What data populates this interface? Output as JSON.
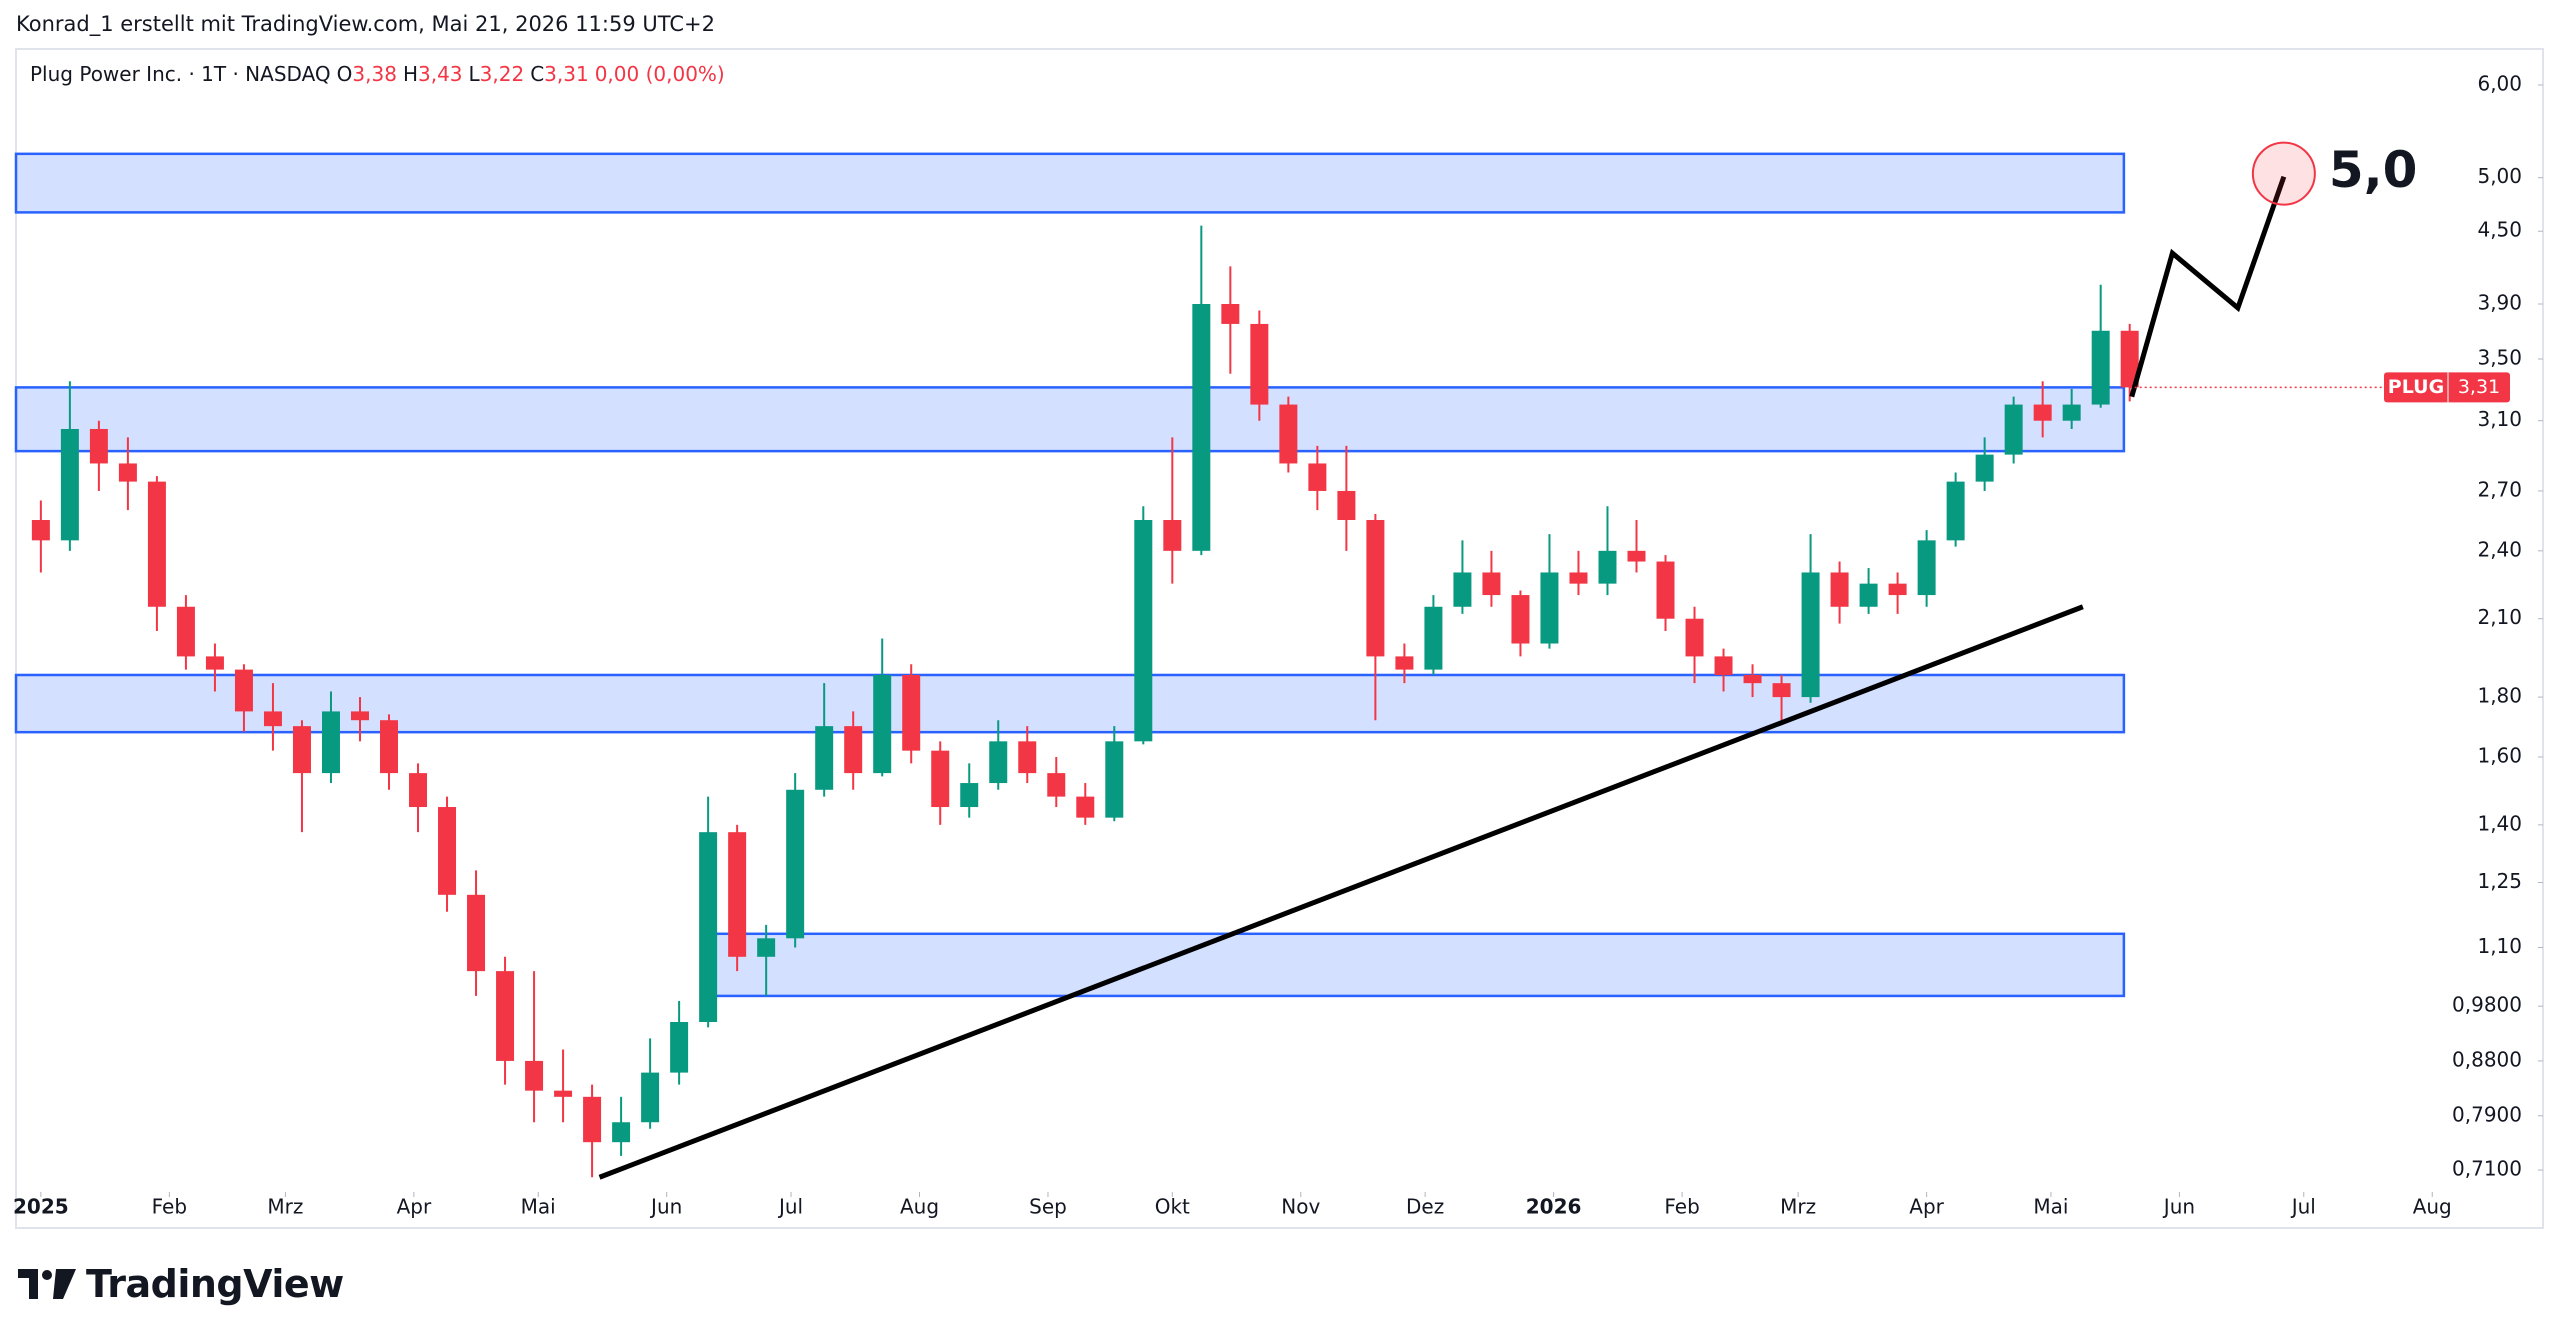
{
  "header": "Konrad_1 erstellt mit TradingView.com, Mai 21, 2026 11:59 UTC+2",
  "legend": {
    "name": "Plug Power Inc. · 1T · NASDAQ",
    "ohlc": [
      {
        "label": "O",
        "value": "3,38"
      },
      {
        "label": "H",
        "value": "3,43"
      },
      {
        "label": "L",
        "value": "3,22"
      },
      {
        "label": "C",
        "value": "3,31"
      }
    ],
    "change": "0,00 (0,00%)"
  },
  "footer": {
    "brand": "TradingView"
  },
  "chart_data": {
    "type": "candlestick",
    "log_scale": true,
    "up_color": "#089981",
    "down_color": "#f23645",
    "xlim": [
      -6,
      603
    ],
    "ylim": [
      0.68,
      6.44
    ],
    "xticks": [
      {
        "value": 0,
        "label": "2025"
      },
      {
        "value": 31,
        "label": "Feb"
      },
      {
        "value": 59,
        "label": "Mrz"
      },
      {
        "value": 90,
        "label": "Apr"
      },
      {
        "value": 120,
        "label": "Mai"
      },
      {
        "value": 151,
        "label": "Jun"
      },
      {
        "value": 181,
        "label": "Jul"
      },
      {
        "value": 212,
        "label": "Aug"
      },
      {
        "value": 243,
        "label": "Sep"
      },
      {
        "value": 273,
        "label": "Okt"
      },
      {
        "value": 304,
        "label": "Nov"
      },
      {
        "value": 334,
        "label": "Dez"
      },
      {
        "value": 365,
        "label": "2026"
      },
      {
        "value": 396,
        "label": "Feb"
      },
      {
        "value": 424,
        "label": "Mrz"
      },
      {
        "value": 455,
        "label": "Apr"
      },
      {
        "value": 485,
        "label": "Mai"
      },
      {
        "value": 516,
        "label": "Jun"
      },
      {
        "value": 546,
        "label": "Jul"
      },
      {
        "value": 577,
        "label": "Aug"
      }
    ],
    "yticks": [
      {
        "value": 6.0,
        "label": "6,00"
      },
      {
        "value": 5.0,
        "label": "5,00"
      },
      {
        "value": 4.5,
        "label": "4,50"
      },
      {
        "value": 3.9,
        "label": "3,90"
      },
      {
        "value": 3.5,
        "label": "3,50"
      },
      {
        "value": 3.1,
        "label": "3,10"
      },
      {
        "value": 2.7,
        "label": "2,70"
      },
      {
        "value": 2.4,
        "label": "2,40"
      },
      {
        "value": 2.1,
        "label": "2,10"
      },
      {
        "value": 1.8,
        "label": "1,80"
      },
      {
        "value": 1.6,
        "label": "1,60"
      },
      {
        "value": 1.4,
        "label": "1,40"
      },
      {
        "value": 1.25,
        "label": "1,25"
      },
      {
        "value": 1.1,
        "label": "1,10"
      },
      {
        "value": 0.98,
        "label": "0,9800"
      },
      {
        "value": 0.88,
        "label": "0,8800"
      },
      {
        "value": 0.79,
        "label": "0,7900"
      },
      {
        "value": 0.71,
        "label": "0,7100"
      }
    ],
    "x": [
      0,
      7,
      14,
      21,
      28,
      35,
      42,
      49,
      56,
      63,
      70,
      77,
      84,
      91,
      98,
      105,
      112,
      119,
      126,
      133,
      140,
      147,
      154,
      161,
      168,
      175,
      182,
      189,
      196,
      203,
      210,
      217,
      224,
      231,
      238,
      245,
      252,
      259,
      266,
      273,
      280,
      287,
      294,
      301,
      308,
      315,
      322,
      329,
      336,
      343,
      350,
      357,
      364,
      371,
      378,
      385,
      392,
      399,
      406,
      413,
      420,
      427,
      434,
      441,
      448,
      455,
      462,
      469,
      476,
      483,
      490,
      497,
      504
    ],
    "open": [
      2.55,
      2.45,
      3.05,
      2.85,
      2.75,
      2.15,
      1.95,
      1.9,
      1.75,
      1.7,
      1.55,
      1.75,
      1.72,
      1.55,
      1.45,
      1.22,
      1.05,
      0.88,
      0.83,
      0.82,
      0.75,
      0.78,
      0.86,
      0.95,
      1.38,
      1.08,
      1.12,
      1.5,
      1.7,
      1.55,
      1.88,
      1.62,
      1.45,
      1.52,
      1.65,
      1.55,
      1.48,
      1.42,
      1.65,
      2.55,
      2.4,
      3.9,
      3.75,
      3.2,
      2.85,
      2.7,
      2.55,
      1.95,
      1.9,
      2.15,
      2.3,
      2.2,
      2.0,
      2.3,
      2.25,
      2.4,
      2.35,
      2.1,
      1.95,
      1.88,
      1.85,
      1.8,
      2.3,
      2.15,
      2.25,
      2.2,
      2.45,
      2.75,
      2.9,
      3.2,
      3.1,
      3.2,
      3.7
    ],
    "high": [
      2.65,
      3.35,
      3.1,
      3.0,
      2.78,
      2.2,
      2.0,
      1.92,
      1.85,
      1.72,
      1.82,
      1.8,
      1.74,
      1.58,
      1.48,
      1.28,
      1.08,
      1.05,
      0.9,
      0.84,
      0.82,
      0.92,
      0.99,
      1.48,
      1.4,
      1.15,
      1.55,
      1.85,
      1.75,
      2.02,
      1.92,
      1.65,
      1.58,
      1.72,
      1.7,
      1.6,
      1.52,
      1.7,
      2.62,
      3.0,
      4.55,
      4.2,
      3.85,
      3.25,
      2.95,
      2.95,
      2.58,
      2.0,
      2.2,
      2.45,
      2.4,
      2.22,
      2.48,
      2.4,
      2.62,
      2.55,
      2.38,
      2.15,
      1.98,
      1.92,
      1.88,
      2.48,
      2.35,
      2.32,
      2.3,
      2.5,
      2.8,
      3.0,
      3.25,
      3.35,
      3.3,
      4.05,
      3.75
    ],
    "low": [
      2.3,
      2.4,
      2.7,
      2.6,
      2.05,
      1.9,
      1.82,
      1.68,
      1.62,
      1.38,
      1.52,
      1.65,
      1.5,
      1.38,
      1.18,
      1.0,
      0.84,
      0.78,
      0.78,
      0.7,
      0.73,
      0.77,
      0.84,
      0.94,
      1.05,
      1.0,
      1.1,
      1.48,
      1.5,
      1.54,
      1.58,
      1.4,
      1.42,
      1.5,
      1.52,
      1.45,
      1.4,
      1.41,
      1.64,
      2.25,
      2.38,
      3.4,
      3.1,
      2.8,
      2.6,
      2.4,
      1.72,
      1.85,
      1.88,
      2.12,
      2.15,
      1.95,
      1.98,
      2.2,
      2.2,
      2.3,
      2.05,
      1.85,
      1.82,
      1.8,
      1.72,
      1.78,
      2.08,
      2.12,
      2.12,
      2.15,
      2.42,
      2.7,
      2.85,
      3.0,
      3.05,
      3.18,
      3.22
    ],
    "close": [
      2.45,
      3.05,
      2.85,
      2.75,
      2.15,
      1.95,
      1.9,
      1.75,
      1.7,
      1.55,
      1.75,
      1.72,
      1.55,
      1.45,
      1.22,
      1.05,
      0.88,
      0.83,
      0.82,
      0.75,
      0.78,
      0.86,
      0.95,
      1.38,
      1.08,
      1.12,
      1.5,
      1.7,
      1.55,
      1.88,
      1.62,
      1.45,
      1.52,
      1.65,
      1.55,
      1.48,
      1.42,
      1.65,
      2.55,
      2.4,
      3.9,
      3.75,
      3.2,
      2.85,
      2.7,
      2.55,
      1.95,
      1.9,
      2.15,
      2.3,
      2.2,
      2.0,
      2.3,
      2.25,
      2.4,
      2.35,
      2.1,
      1.95,
      1.88,
      1.85,
      1.8,
      2.3,
      2.15,
      2.25,
      2.2,
      2.45,
      2.75,
      2.9,
      3.2,
      3.1,
      3.2,
      3.7,
      3.31
    ],
    "zones": [
      {
        "x": [
          -6,
          502.6
        ],
        "y": [
          4.67,
          5.24
        ]
      },
      {
        "x": [
          -6,
          502.6
        ],
        "y": [
          2.92,
          3.31
        ]
      },
      {
        "x": [
          -6,
          502.6
        ],
        "y": [
          1.68,
          1.88
        ]
      },
      {
        "x": [
          162,
          502.6
        ],
        "y": [
          1.0,
          1.13
        ]
      }
    ],
    "zone_color": "#2962ff",
    "trendline": {
      "x": [
        134.8,
        492.7
      ],
      "y": [
        0.7,
        2.15
      ]
    },
    "projection": {
      "x": [
        504.5,
        514.3,
        530.1,
        541.2
      ],
      "y": [
        3.25,
        4.31,
        3.87,
        5.01
      ]
    },
    "annotation": "5,0",
    "last_price": {
      "symbol": "PLUG",
      "value": 3.31,
      "label": "3,31"
    }
  }
}
